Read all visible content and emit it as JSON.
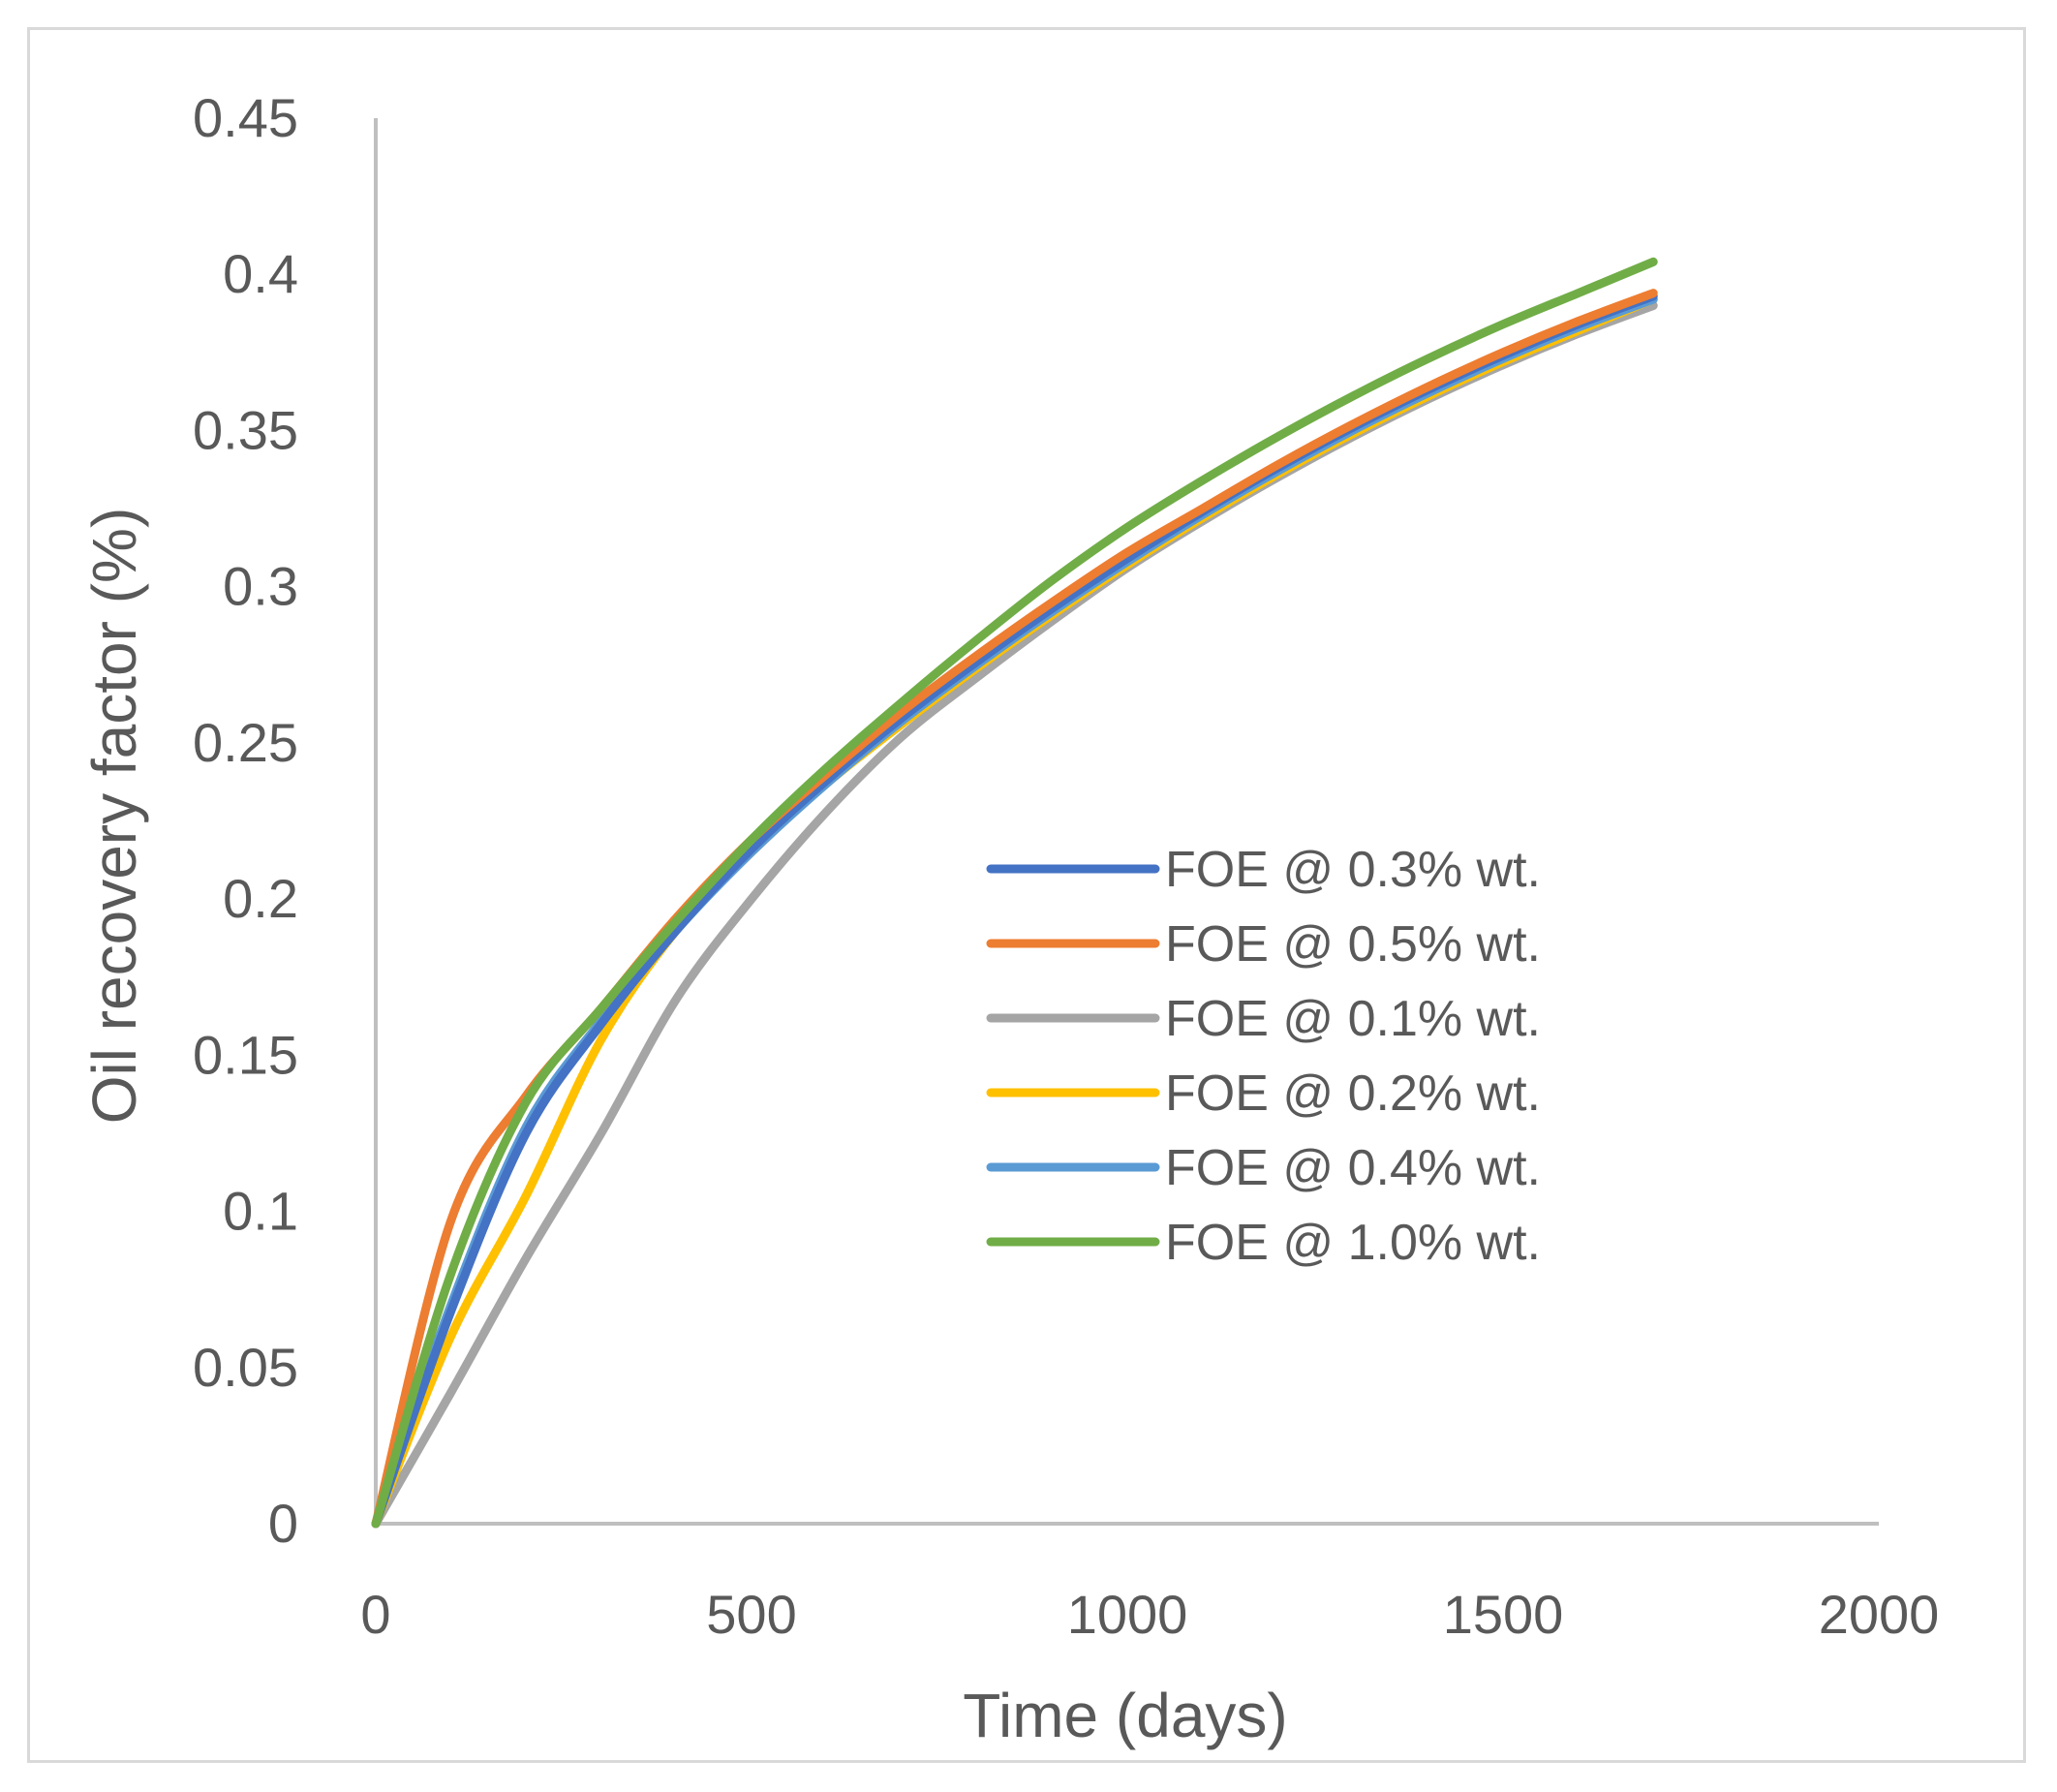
{
  "chart_data": {
    "type": "line",
    "title": "",
    "xlabel": "Time (days)",
    "ylabel": "Oil recovery factor (%)",
    "xlim": [
      0,
      2000
    ],
    "ylim": [
      0,
      0.45
    ],
    "xticks": [
      0,
      500,
      1000,
      1500,
      2000
    ],
    "xtick_labels": [
      "0",
      "500",
      "1000",
      "1500",
      "2000"
    ],
    "yticks": [
      0,
      0.05,
      0.1,
      0.15,
      0.2,
      0.25,
      0.3,
      0.35,
      0.4,
      0.45
    ],
    "ytick_labels": [
      "0",
      "0.05",
      "0.1",
      "0.15",
      "0.2",
      "0.25",
      "0.3",
      "0.35",
      "0.4",
      "0.45"
    ],
    "grid": false,
    "legend_position": "center-right",
    "series": [
      {
        "name": "FOE @ 0.3% wt.",
        "color": "#4472C4",
        "x": [
          0,
          100,
          200,
          300,
          400,
          500,
          600,
          700,
          800,
          900,
          1000,
          1100,
          1200,
          1300,
          1400,
          1500,
          1600,
          1700
        ],
        "y": [
          0,
          0.068,
          0.125,
          0.16,
          0.19,
          0.216,
          0.238,
          0.258,
          0.276,
          0.293,
          0.309,
          0.324,
          0.338,
          0.351,
          0.363,
          0.374,
          0.384,
          0.393
        ]
      },
      {
        "name": "FOE @ 0.5% wt.",
        "color": "#ED7D31",
        "x": [
          0,
          100,
          200,
          300,
          400,
          500,
          600,
          700,
          800,
          900,
          1000,
          1100,
          1200,
          1300,
          1400,
          1500,
          1600,
          1700
        ],
        "y": [
          0,
          0.097,
          0.137,
          0.165,
          0.194,
          0.219,
          0.24,
          0.26,
          0.278,
          0.295,
          0.311,
          0.325,
          0.339,
          0.352,
          0.364,
          0.375,
          0.385,
          0.394
        ]
      },
      {
        "name": "FOE @ 0.1% wt.",
        "color": "#A5A5A5",
        "x": [
          0,
          100,
          200,
          300,
          400,
          500,
          600,
          700,
          800,
          900,
          1000,
          1100,
          1200,
          1300,
          1400,
          1500,
          1600,
          1700
        ],
        "y": [
          0,
          0.042,
          0.085,
          0.125,
          0.168,
          0.2,
          0.228,
          0.252,
          0.271,
          0.289,
          0.306,
          0.321,
          0.335,
          0.348,
          0.36,
          0.371,
          0.381,
          0.39
        ]
      },
      {
        "name": "FOE @ 0.2% wt.",
        "color": "#FFC000",
        "x": [
          0,
          100,
          200,
          300,
          400,
          500,
          600,
          700,
          800,
          900,
          1000,
          1100,
          1200,
          1300,
          1400,
          1500,
          1600,
          1700
        ],
        "y": [
          0,
          0.06,
          0.105,
          0.155,
          0.19,
          0.215,
          0.237,
          0.256,
          0.274,
          0.291,
          0.307,
          0.322,
          0.336,
          0.349,
          0.361,
          0.372,
          0.382,
          0.392
        ]
      },
      {
        "name": "FOE @ 0.4% wt.",
        "color": "#5B9BD5",
        "x": [
          0,
          100,
          200,
          300,
          400,
          500,
          600,
          700,
          800,
          900,
          1000,
          1100,
          1200,
          1300,
          1400,
          1500,
          1600,
          1700
        ],
        "y": [
          0,
          0.07,
          0.127,
          0.161,
          0.19,
          0.215,
          0.237,
          0.257,
          0.275,
          0.292,
          0.308,
          0.323,
          0.337,
          0.35,
          0.362,
          0.373,
          0.383,
          0.392
        ]
      },
      {
        "name": "FOE @ 1.0% wt.",
        "color": "#70AD47",
        "x": [
          0,
          100,
          200,
          300,
          400,
          500,
          600,
          700,
          800,
          900,
          1000,
          1100,
          1200,
          1300,
          1400,
          1500,
          1600,
          1700
        ],
        "y": [
          0,
          0.08,
          0.135,
          0.165,
          0.193,
          0.219,
          0.242,
          0.263,
          0.283,
          0.302,
          0.319,
          0.334,
          0.348,
          0.361,
          0.373,
          0.384,
          0.394,
          0.404
        ]
      }
    ]
  }
}
